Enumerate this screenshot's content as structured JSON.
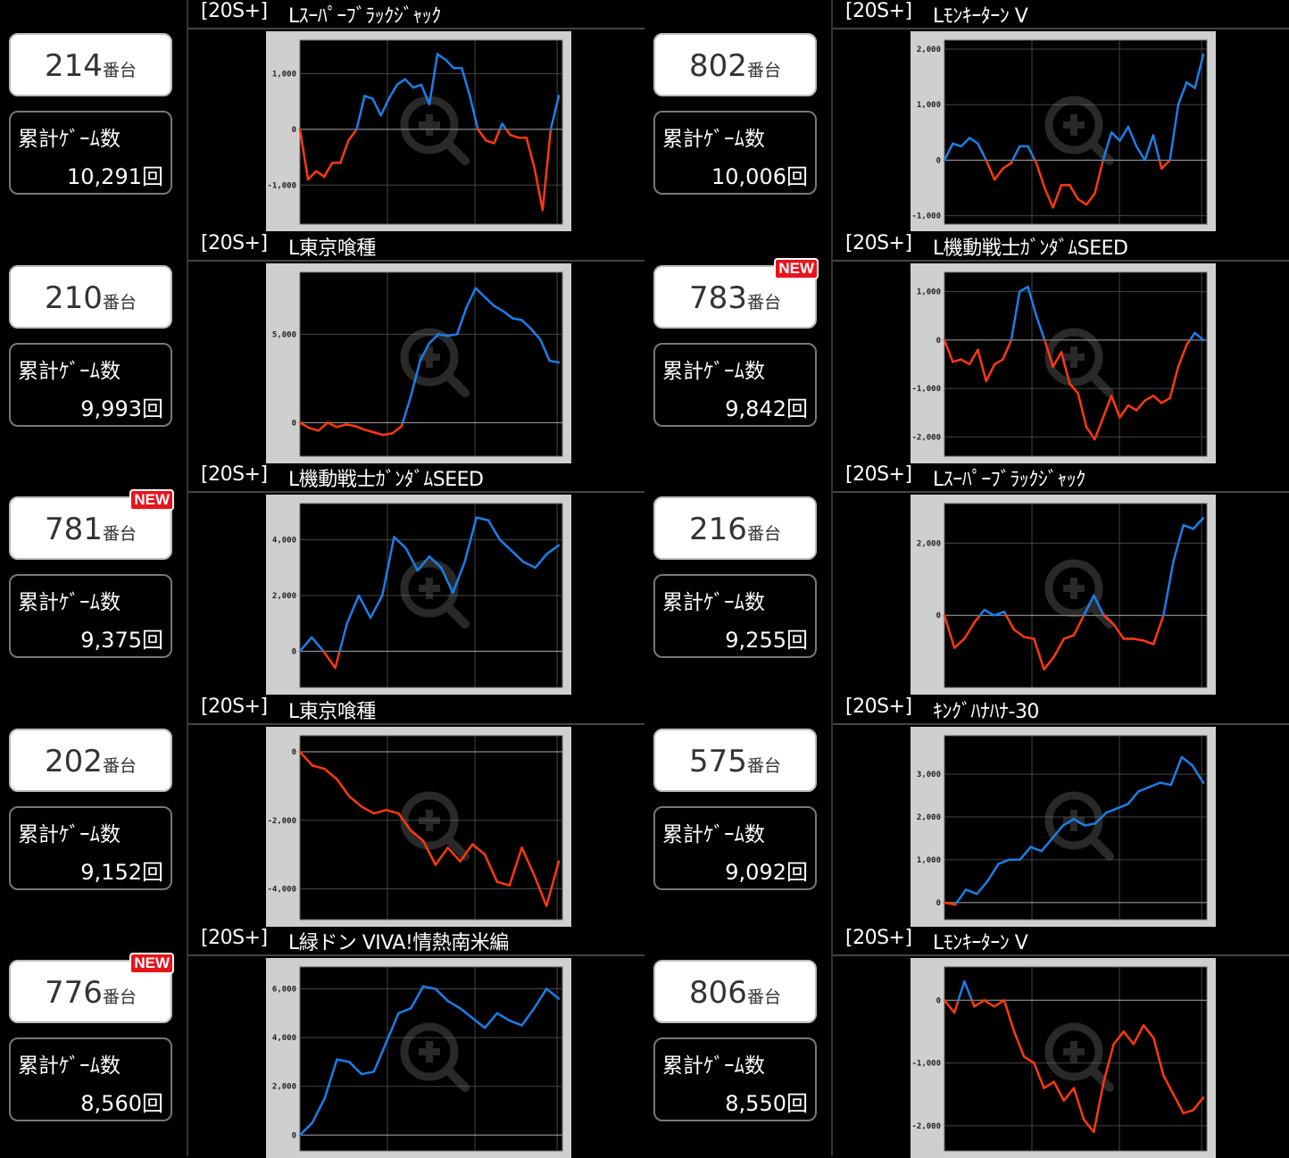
{
  "unit_label": "番台",
  "count_label": "累計ｹﾞｰﾑ数",
  "new_badge": "NEW",
  "colors": {
    "plus": "#1a7fe8",
    "minus": "#ff3a0a",
    "frame": "#cfcfcf"
  },
  "watermark_icon": "zoom-in-icon",
  "columns": [
    [
      {
        "tag": "[20S+]",
        "title": "Lｽｰﾊﾟｰﾌﾞﾗｯｸｼﾞｬｯｸ",
        "machine": "214",
        "count": "10,291回",
        "is_new": false,
        "chart_data": {
          "type": "line",
          "yticks": [
            1000,
            0,
            -1000
          ],
          "ytick_labels": [
            "1,000",
            "0",
            "-1,000"
          ],
          "ylim": [
            -1700,
            1600
          ],
          "values": [
            0,
            -900,
            -750,
            -850,
            -600,
            -600,
            -200,
            0,
            600,
            550,
            250,
            550,
            800,
            900,
            750,
            800,
            450,
            1350,
            1250,
            1100,
            1100,
            600,
            0,
            -200,
            -250,
            100,
            -100,
            -150,
            -150,
            -700,
            -1450,
            0,
            600
          ]
        }
      },
      {
        "tag": "[20S+]",
        "title": "L東京喰種",
        "machine": "210",
        "count": "9,993回",
        "is_new": false,
        "chart_data": {
          "type": "line",
          "yticks": [
            5000,
            0
          ],
          "ytick_labels": [
            "5,000",
            "0"
          ],
          "ylim": [
            -1900,
            8500
          ],
          "values": [
            0,
            -300,
            -450,
            0,
            -250,
            -100,
            -200,
            -400,
            -550,
            -700,
            -600,
            -200,
            1500,
            3500,
            4500,
            5000,
            4900,
            5000,
            6500,
            7600,
            7100,
            6600,
            6300,
            5900,
            5800,
            5300,
            4700,
            3500,
            3400
          ]
        }
      },
      {
        "tag": "[20S+]",
        "title": "L機動戦士ｶﾞﾝﾀﾞﾑSEED",
        "machine": "781",
        "count": "9,375回",
        "is_new": true,
        "chart_data": {
          "type": "line",
          "yticks": [
            4000,
            2000,
            0
          ],
          "ytick_labels": [
            "4,000",
            "2,000",
            "0"
          ],
          "ylim": [
            -1300,
            5300
          ],
          "values": [
            0,
            500,
            0,
            -600,
            1000,
            2000,
            1200,
            2000,
            4100,
            3700,
            2900,
            3400,
            3000,
            2100,
            3200,
            4800,
            4700,
            4000,
            3600,
            3200,
            3000,
            3500,
            3800
          ]
        }
      },
      {
        "tag": "[20S+]",
        "title": "L東京喰種",
        "machine": "202",
        "count": "9,152回",
        "is_new": false,
        "chart_data": {
          "type": "line",
          "yticks": [
            0,
            -2000,
            -4000
          ],
          "ytick_labels": [
            "0",
            "-2,000",
            "-4,000"
          ],
          "ylim": [
            -4900,
            470
          ],
          "values": [
            0,
            -400,
            -500,
            -800,
            -1300,
            -1600,
            -1800,
            -1700,
            -1800,
            -2300,
            -2600,
            -3300,
            -2800,
            -3200,
            -2700,
            -3000,
            -3800,
            -3900,
            -2800,
            -3600,
            -4500,
            -3200
          ]
        }
      },
      {
        "tag": "[20S+]",
        "title": "L緑ドン VIVA!情熱南米編",
        "machine": "776",
        "count": "8,560回",
        "is_new": true,
        "chart_data": {
          "type": "line",
          "yticks": [
            6000,
            4000,
            2000,
            0
          ],
          "ytick_labels": [
            "6,000",
            "4,000",
            "2,000",
            "0"
          ],
          "ylim": [
            -650,
            6900
          ],
          "values": [
            0,
            500,
            1500,
            3100,
            3000,
            2500,
            2600,
            3800,
            5000,
            5200,
            6100,
            6000,
            5500,
            5200,
            4800,
            4400,
            5000,
            4700,
            4500,
            5200,
            6000,
            5600
          ]
        }
      }
    ],
    [
      {
        "tag": "[20S+]",
        "title": "Lﾓﾝｷｰﾀｰﾝ V",
        "machine": "802",
        "count": "10,006回",
        "is_new": false,
        "chart_data": {
          "type": "line",
          "yticks": [
            2000,
            1000,
            0,
            -1000
          ],
          "ytick_labels": [
            "2,000",
            "1,000",
            "0",
            "-1,000"
          ],
          "ylim": [
            -1150,
            2160
          ],
          "values": [
            0,
            300,
            250,
            400,
            300,
            0,
            -350,
            -150,
            -50,
            250,
            250,
            -50,
            -500,
            -850,
            -450,
            -450,
            -700,
            -800,
            -600,
            0,
            500,
            350,
            600,
            250,
            0,
            450,
            -150,
            0,
            1000,
            1400,
            1300,
            1900
          ]
        }
      },
      {
        "tag": "[20S+]",
        "title": "L機動戦士ｶﾞﾝﾀﾞﾑSEED",
        "machine": "783",
        "count": "9,842回",
        "is_new": true,
        "chart_data": {
          "type": "line",
          "yticks": [
            1000,
            0,
            -1000,
            -2000
          ],
          "ytick_labels": [
            "1,000",
            "0",
            "-1,000",
            "-2,000"
          ],
          "ylim": [
            -2400,
            1400
          ],
          "values": [
            0,
            -450,
            -400,
            -500,
            -200,
            -850,
            -500,
            -400,
            0,
            1000,
            1100,
            500,
            0,
            -550,
            -250,
            -900,
            -1100,
            -1800,
            -2050,
            -1600,
            -1150,
            -1600,
            -1350,
            -1450,
            -1250,
            -1150,
            -1300,
            -1200,
            -550,
            -100,
            150,
            0
          ]
        }
      },
      {
        "tag": "[20S+]",
        "title": "Lｽｰﾊﾟｰﾌﾞﾗｯｸｼﾞｬｯｸ",
        "machine": "216",
        "count": "9,255回",
        "is_new": false,
        "chart_data": {
          "type": "line",
          "yticks": [
            2000,
            0
          ],
          "ytick_labels": [
            "2,000",
            "0"
          ],
          "ylim": [
            -2000,
            3100
          ],
          "values": [
            0,
            -900,
            -650,
            -200,
            150,
            0,
            100,
            -400,
            -600,
            -650,
            -1500,
            -1150,
            -650,
            -550,
            0,
            550,
            0,
            -250,
            -650,
            -650,
            -700,
            -800,
            0,
            1500,
            2500,
            2400,
            2700
          ]
        }
      },
      {
        "tag": "[20S+]",
        "title": "ｷﾝｸﾞﾊﾅﾊﾅ-30",
        "machine": "575",
        "count": "9,092回",
        "is_new": false,
        "chart_data": {
          "type": "line",
          "yticks": [
            3000,
            2000,
            1000,
            0
          ],
          "ytick_labels": [
            "3,000",
            "2,000",
            "1,000",
            "0"
          ],
          "ylim": [
            -400,
            3900
          ],
          "values": [
            0,
            -50,
            300,
            200,
            500,
            900,
            1000,
            1000,
            1300,
            1200,
            1500,
            1800,
            1950,
            1800,
            1850,
            2100,
            2200,
            2300,
            2600,
            2700,
            2800,
            2750,
            3400,
            3200,
            2800
          ]
        }
      },
      {
        "tag": "[20S+]",
        "title": "Lﾓﾝｷｰﾀｰﾝ V",
        "machine": "806",
        "count": "8,550回",
        "is_new": false,
        "chart_data": {
          "type": "line",
          "yticks": [
            0,
            -1000,
            -2000
          ],
          "ytick_labels": [
            "0",
            "-1,000",
            "-2,000"
          ],
          "ylim": [
            -2400,
            530
          ],
          "values": [
            0,
            -200,
            300,
            -100,
            0,
            -100,
            0,
            -500,
            -900,
            -1000,
            -1400,
            -1300,
            -1600,
            -1400,
            -1900,
            -2100,
            -1300,
            -700,
            -500,
            -700,
            -400,
            -600,
            -1200,
            -1500,
            -1800,
            -1750,
            -1550
          ]
        }
      }
    ]
  ]
}
